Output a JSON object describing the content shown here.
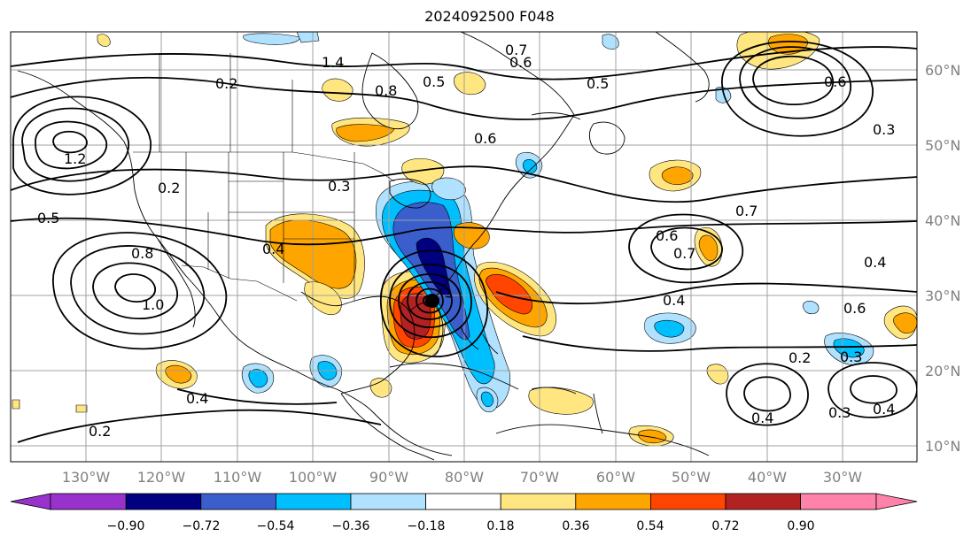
{
  "title": "2024092500 F048",
  "map": {
    "lon_range": [
      -140,
      -15
    ],
    "lat_range": [
      7,
      65
    ],
    "lon_ticks": [
      "130°W",
      "120°W",
      "110°W",
      "100°W",
      "90°W",
      "80°W",
      "70°W",
      "60°W",
      "50°W",
      "40°W",
      "30°W"
    ],
    "lat_ticks": [
      "60°N",
      "50°N",
      "40°N",
      "30°N",
      "20°N",
      "10°N"
    ],
    "contour_labels": [
      "1.4",
      "0.6",
      "0.5",
      "0.2",
      "0.8",
      "0.3",
      "1.2",
      "0.2",
      "0.5",
      "0.6",
      "0.4",
      "0.7",
      "0.7",
      "0.4",
      "0.2",
      "0.4",
      "0.2",
      "0.4",
      "0.3",
      "0.4",
      "0.6",
      "0.3",
      "1.0",
      "0.4",
      "0.3",
      "0.5",
      "0.6",
      "0.6",
      "0.7",
      "0.8"
    ],
    "storm_center": {
      "lon": -84.5,
      "lat": 29.3
    }
  },
  "colorbar": {
    "ticks": [
      "−0.90",
      "−0.72",
      "−0.54",
      "−0.36",
      "−0.18",
      "0.18",
      "0.36",
      "0.54",
      "0.72",
      "0.90"
    ],
    "colors": [
      "#9932cc",
      "#000080",
      "#3a5fcd",
      "#00bfff",
      "#b0e2ff",
      "#ffffff",
      "#ffe680",
      "#ffa500",
      "#ff4500",
      "#b22222",
      "#ff82ab"
    ]
  }
}
